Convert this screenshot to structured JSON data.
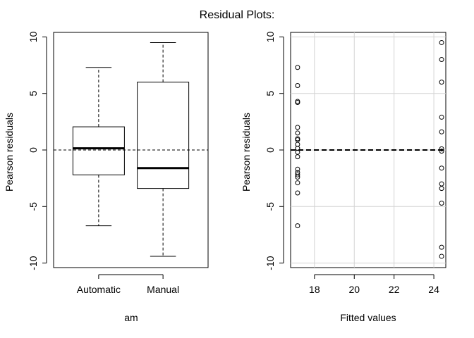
{
  "title": "Residual Plots:",
  "chart_data": [
    {
      "type": "boxplot",
      "title": "",
      "xlabel": "am",
      "ylabel": "Pearson residuals",
      "ylim": [
        -10,
        10
      ],
      "yticks": [
        -10,
        -5,
        0,
        5,
        10
      ],
      "categories": [
        "Automatic",
        "Manual"
      ],
      "boxes": [
        {
          "name": "Automatic",
          "whisker_low": -6.7,
          "q1": -2.2,
          "median": 0.15,
          "q3": 2.05,
          "whisker_high": 7.3
        },
        {
          "name": "Manual",
          "whisker_low": -9.4,
          "q1": -3.4,
          "median": -1.6,
          "q3": 6.0,
          "whisker_high": 9.5
        }
      ],
      "reference_line": 0,
      "grid": false
    },
    {
      "type": "scatter",
      "title": "",
      "xlabel": "Fitted values",
      "ylabel": "Pearson residuals",
      "xlim": [
        16.8,
        24.6
      ],
      "ylim": [
        -10,
        10
      ],
      "xticks": [
        18,
        20,
        22,
        24
      ],
      "yticks": [
        -10,
        -5,
        0,
        5,
        10
      ],
      "grid": true,
      "reference_line": 0,
      "points": [
        {
          "x": 17.15,
          "y": 7.3
        },
        {
          "x": 17.15,
          "y": 5.7
        },
        {
          "x": 17.15,
          "y": 4.3
        },
        {
          "x": 17.15,
          "y": 4.2
        },
        {
          "x": 17.15,
          "y": 2.0
        },
        {
          "x": 17.15,
          "y": 1.5
        },
        {
          "x": 17.15,
          "y": 0.9
        },
        {
          "x": 17.15,
          "y": 0.5
        },
        {
          "x": 17.15,
          "y": 0.15
        },
        {
          "x": 17.15,
          "y": -0.6
        },
        {
          "x": 17.15,
          "y": -1.7
        },
        {
          "x": 17.15,
          "y": -2.0
        },
        {
          "x": 17.15,
          "y": -2.4
        },
        {
          "x": 17.15,
          "y": -2.9
        },
        {
          "x": 17.15,
          "y": -3.8
        },
        {
          "x": 17.15,
          "y": -6.7
        },
        {
          "x": 17.15,
          "y": -2.2
        },
        {
          "x": 17.15,
          "y": 1.0
        },
        {
          "x": 17.15,
          "y": -0.2
        },
        {
          "x": 24.39,
          "y": 9.5
        },
        {
          "x": 24.39,
          "y": 8.0
        },
        {
          "x": 24.39,
          "y": 6.0
        },
        {
          "x": 24.39,
          "y": 2.9
        },
        {
          "x": 24.39,
          "y": 1.6
        },
        {
          "x": 24.39,
          "y": -1.6
        },
        {
          "x": 24.39,
          "y": -3.0
        },
        {
          "x": 24.39,
          "y": -3.4
        },
        {
          "x": 24.39,
          "y": -4.7
        },
        {
          "x": 24.39,
          "y": -8.6
        },
        {
          "x": 24.39,
          "y": -9.4
        },
        {
          "x": 24.39,
          "y": 0.1
        },
        {
          "x": 24.39,
          "y": -0.1
        }
      ]
    }
  ]
}
